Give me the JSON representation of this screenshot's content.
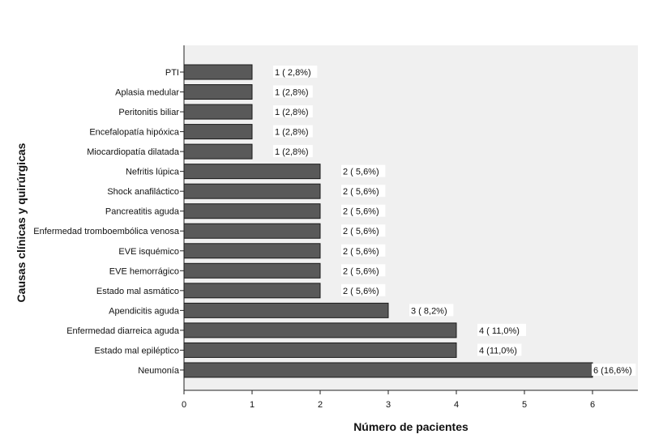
{
  "chart_data": {
    "type": "bar",
    "orientation": "horizontal",
    "title": "",
    "xlabel": "Número de pacientes",
    "ylabel": "Causas clínicas y quirúrgicas",
    "xlim": [
      0,
      6.65
    ],
    "x_ticks": [
      0,
      1,
      2,
      3,
      4,
      5,
      6
    ],
    "grid": false,
    "colors": {
      "bar": "#595959",
      "bar_stroke": "#1a1a1a",
      "plot_bg": "#f0f0f0",
      "page_bg": "#ffffff"
    },
    "categories": [
      "PTI",
      "Aplasia medular",
      "Peritonitis biliar",
      "Encefalopatía hipóxica",
      "Miocardiopatía dilatada",
      "Nefritis lúpica",
      "Shock anafiláctico",
      "Pancreatitis aguda",
      "Enfermedad tromboembólica venosa",
      "EVE isquémico",
      "EVE hemorrágico",
      "Estado mal asmático",
      "Apendicitis aguda",
      "Enfermedad diarreica aguda",
      "Estado mal epiléptico",
      "Neumonía"
    ],
    "values": [
      1,
      1,
      1,
      1,
      1,
      2,
      2,
      2,
      2,
      2,
      2,
      2,
      3,
      4,
      4,
      6
    ],
    "data_labels": [
      "1 ( 2,8%)",
      "1 (2,8%)",
      "1 (2,8%)",
      "1 (2,8%)",
      "1 (2,8%)",
      "2 ( 5,6%)",
      "2 ( 5,6%)",
      "2 ( 5,6%)",
      "2 ( 5,6%)",
      "2 ( 5,6%)",
      "2 ( 5,6%)",
      "2 ( 5,6%)",
      "3 ( 8,2%)",
      "4 ( 11,0%)",
      "4 (11,0%)",
      "6 (16,6%)"
    ]
  }
}
